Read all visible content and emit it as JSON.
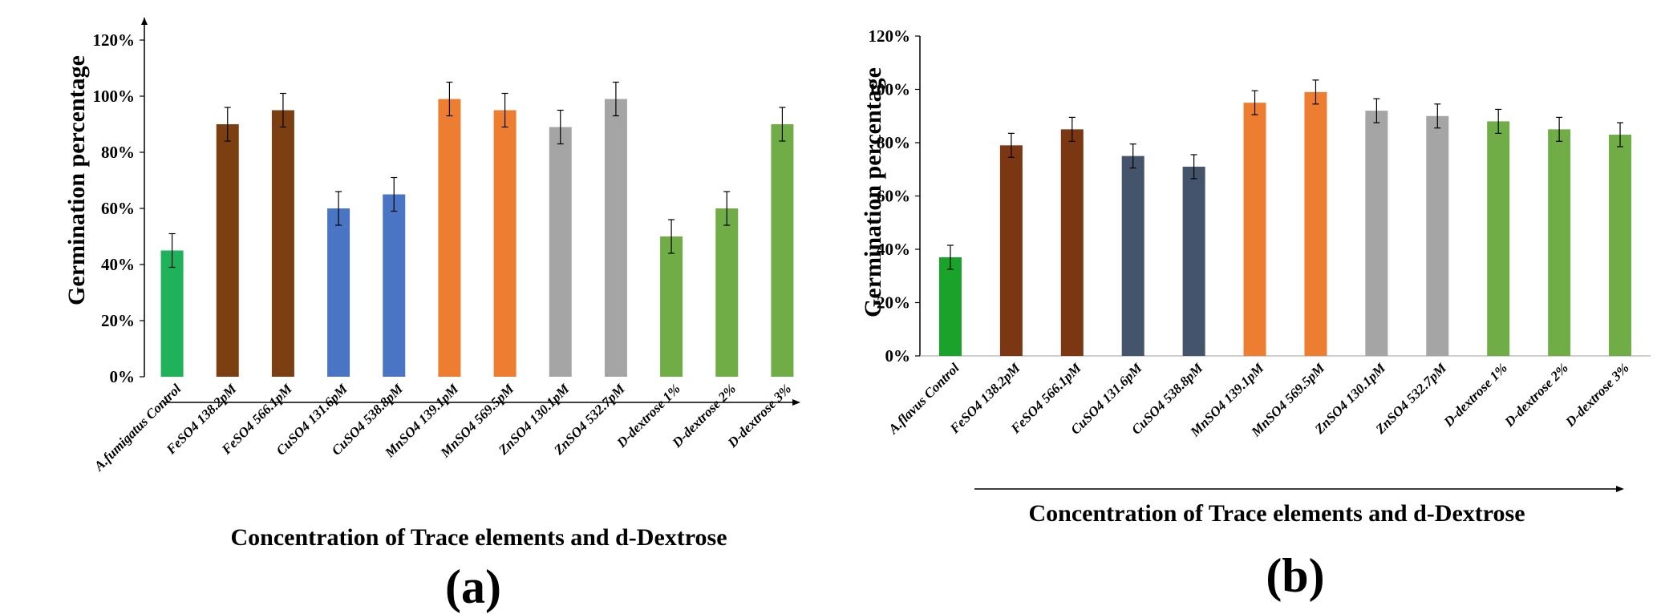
{
  "chart_data": [
    {
      "type": "bar",
      "panel_label": "(a)",
      "ylabel": "Germination percentage",
      "xlabel": "Concentration of Trace elements and d-Dextrose",
      "ylim": [
        0,
        120
      ],
      "yticks": [
        "0%",
        "20%",
        "40%",
        "60%",
        "80%",
        "100%",
        "120%"
      ],
      "grid": false,
      "legend": "none",
      "categories": [
        "A.fumigatus Control",
        "FeSO4 138.2pM",
        "FeSO4 566.1pM",
        "CuSO4 131.6pM",
        "CuSO4 538.8pM",
        "MnSO4 139.1pM",
        "MnSO4 569.5pM",
        "ZnSO4 130.1pM",
        "ZnSO4 532.7pM",
        "D-dextrose 1%",
        "D-dextrose 2%",
        "D-dextrose 3%"
      ],
      "values": [
        45,
        90,
        95,
        60,
        65,
        99,
        95,
        89,
        99,
        50,
        60,
        90
      ],
      "errors": [
        6,
        6,
        6,
        6,
        6,
        6,
        6,
        6,
        6,
        6,
        6,
        6
      ],
      "colors": [
        "#1fb25a",
        "#7b3f12",
        "#7b3f12",
        "#4a74c4",
        "#4a74c4",
        "#ed7d31",
        "#ed7d31",
        "#a5a5a5",
        "#a5a5a5",
        "#70ad47",
        "#70ad47",
        "#70ad47"
      ]
    },
    {
      "type": "bar",
      "panel_label": "(b)",
      "ylabel": "Germination percentage",
      "xlabel": "Concentration of Trace elements and d-Dextrose",
      "ylim": [
        0,
        120
      ],
      "yticks": [
        "0%",
        "20%",
        "40%",
        "60%",
        "80%",
        "100%",
        "120%"
      ],
      "grid": false,
      "legend": "none",
      "categories": [
        "A.flavus Control",
        "FeSO4 138.2pM",
        "FeSO4 566.1pM",
        "CuSO4 131.6pM",
        "CuSO4 538.8pM",
        "MnSO4 139.1pM",
        "MnSO4 569.5pM",
        "ZnSO4 130.1pM",
        "ZnSO4 532.7pM",
        "D-dextrose 1%",
        "D-dextrose 2%",
        "D-dextrose 3%"
      ],
      "values": [
        37,
        79,
        85,
        75,
        71,
        95,
        99,
        92,
        90,
        88,
        85,
        83
      ],
      "errors": [
        4.5,
        4.5,
        4.5,
        4.5,
        4.5,
        4.5,
        4.5,
        4.5,
        4.5,
        4.5,
        4.5,
        4.5
      ],
      "colors": [
        "#1aa32a",
        "#7b3612",
        "#7b3612",
        "#44546a",
        "#44546a",
        "#ed7d31",
        "#ed7d31",
        "#a5a5a5",
        "#a5a5a5",
        "#70ad47",
        "#70ad47",
        "#70ad47"
      ]
    }
  ]
}
